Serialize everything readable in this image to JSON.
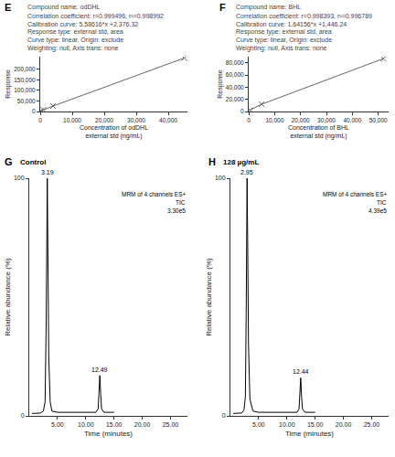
{
  "chart_data": [
    {
      "type": "scatter",
      "label": "E",
      "annotations": [
        "Compound name: odDHL",
        "Correlation coefficient: r=0.999496, r²=0.998992",
        "Calibration curve: 5.58616*x +2,376.32",
        "Response type: external std, area",
        "Curve type: linear, Origin: exclude",
        "Weighting: null, Axis trans: none"
      ],
      "xlabel": "Concentration of odDHL\nexternal std (ng/mL)",
      "ylabel": "Response",
      "x": [
        200,
        1000,
        4000,
        45000
      ],
      "values": [
        3800,
        7500,
        26000,
        253500
      ],
      "xlim": [
        0,
        46000
      ],
      "ylim": [
        0,
        260000
      ],
      "xticks": [
        0,
        {
          "value": 10000,
          "label": "10,000"
        },
        {
          "value": 20000,
          "label": "20,000"
        },
        {
          "value": 30000,
          "label": "30,000"
        },
        {
          "value": 40000,
          "label": "40,000"
        }
      ],
      "yticks": [
        0,
        {
          "value": 50000,
          "label": "50,000"
        },
        {
          "value": 100000,
          "label": "100,000"
        },
        {
          "value": 150000,
          "label": "150,000"
        },
        {
          "value": 200000,
          "label": "200,000"
        }
      ],
      "color": "#666666",
      "marker": "x",
      "line_style": "solid",
      "grid": false
    },
    {
      "type": "scatter",
      "label": "F",
      "annotations": [
        "Compound name: BHL",
        "Correlation coefficient: r=0.998393, r²=0.996789",
        "Calibration curve: 1.64156*x +1,446.24",
        "Response type: external std, area",
        "Curve type: linear, Origin: exclude",
        "Weighting: null, Axis trans: none"
      ],
      "xlabel": "Concentration of BHL\nexternal std (ng/mL)",
      "ylabel": "Response",
      "x": [
        500,
        5000,
        52000
      ],
      "values": [
        2300,
        12000,
        86800
      ],
      "xlim": [
        0,
        54000
      ],
      "ylim": [
        0,
        90000
      ],
      "xticks": [
        0,
        {
          "value": 10000,
          "label": "10,000"
        },
        {
          "value": 20000,
          "label": "20,000"
        },
        {
          "value": 30000,
          "label": "30,000"
        },
        {
          "value": 40000,
          "label": "40,000"
        },
        {
          "value": 50000,
          "label": "50,000"
        }
      ],
      "yticks": [
        0,
        {
          "value": 20000,
          "label": "20,000"
        },
        {
          "value": 40000,
          "label": "40,000"
        },
        {
          "value": 60000,
          "label": "60,000"
        },
        {
          "value": 80000,
          "label": "80,000"
        }
      ],
      "color": "#666666",
      "marker": "x",
      "line_style": "solid",
      "grid": false
    },
    {
      "type": "line",
      "label": "G",
      "title": "Control",
      "annotations": [
        {
          "text": "3.19",
          "x": 3.19,
          "y": 100
        },
        {
          "text": "12.49",
          "x": 12.49,
          "y": 17
        },
        {
          "text": "MRM of 4 channels ES+"
        },
        {
          "text": "TIC"
        },
        {
          "text": "3.30e5"
        }
      ],
      "xlabel": "Time (minutes)",
      "ylabel": "Relative abundance (%)",
      "x": [
        0.5,
        1,
        1.5,
        2,
        2.5,
        2.8,
        3.0,
        3.1,
        3.19,
        3.3,
        3.45,
        3.7,
        4,
        5,
        6,
        7,
        8,
        9,
        10,
        11,
        11.8,
        12.2,
        12.35,
        12.49,
        12.65,
        12.8,
        13.2,
        14,
        15
      ],
      "values": [
        1,
        1,
        1,
        1.2,
        2,
        6,
        40,
        85,
        100,
        70,
        25,
        6,
        2,
        1.5,
        1.5,
        1.5,
        1.5,
        1.5,
        1.5,
        1.5,
        1.5,
        3,
        10,
        17,
        9,
        3,
        1.5,
        1.5,
        1.5
      ],
      "xlim": [
        0,
        28
      ],
      "ylim": [
        0,
        100
      ],
      "xticks": [
        {
          "value": 5,
          "label": "5.00"
        },
        {
          "value": 10,
          "label": "10.00"
        },
        {
          "value": 15,
          "label": "15.00"
        },
        {
          "value": 20,
          "label": "20.00"
        },
        {
          "value": 25,
          "label": "25.00"
        }
      ],
      "yticks": [
        0,
        100
      ],
      "color": "#000000",
      "line_style": "solid",
      "grid": false
    },
    {
      "type": "line",
      "label": "H",
      "title": "128 µg/mL",
      "annotations": [
        {
          "text": "2.95",
          "x": 2.95,
          "y": 100
        },
        {
          "text": "12.44",
          "x": 12.44,
          "y": 16
        },
        {
          "text": "MRM of 4 channels ES+"
        },
        {
          "text": "TIC"
        },
        {
          "text": "4.39e5"
        }
      ],
      "xlabel": "Time (minutes)",
      "ylabel": "Relative abundance (%)",
      "x": [
        0.5,
        1,
        1.5,
        2,
        2.4,
        2.65,
        2.8,
        2.88,
        2.95,
        3.05,
        3.2,
        3.45,
        4,
        5,
        6,
        7,
        8,
        9,
        10,
        11,
        11.8,
        12.15,
        12.3,
        12.44,
        12.6,
        12.75,
        13.2,
        14,
        15
      ],
      "values": [
        1,
        1,
        1,
        1.2,
        2.5,
        8,
        45,
        85,
        100,
        75,
        30,
        7,
        2,
        1.5,
        1.5,
        1.5,
        1.5,
        1.5,
        1.5,
        1.5,
        1.5,
        3,
        9,
        16,
        8,
        3,
        1.5,
        1.5,
        1.5
      ],
      "xlim": [
        0,
        28
      ],
      "ylim": [
        0,
        100
      ],
      "xticks": [
        {
          "value": 5,
          "label": "5.00"
        },
        {
          "value": 10,
          "label": "10.00"
        },
        {
          "value": 15,
          "label": "15.00"
        },
        {
          "value": 20,
          "label": "20.00"
        },
        {
          "value": 25,
          "label": "25.00"
        }
      ],
      "yticks": [
        0,
        100
      ],
      "color": "#000000",
      "line_style": "solid",
      "grid": false
    }
  ]
}
